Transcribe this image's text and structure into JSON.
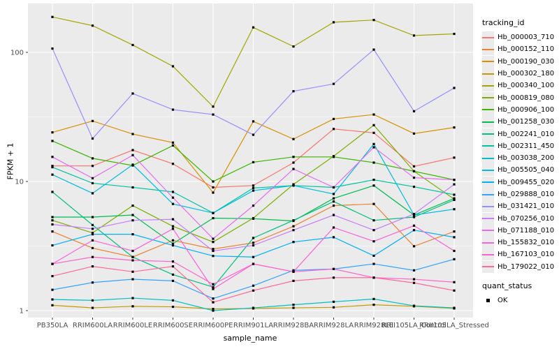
{
  "figure": {
    "background": "#FFFFFF",
    "panel_background": "#EBEBEB",
    "grid_color": "#FFFFFF",
    "tick_label_color": "#4D4D4D",
    "axis_title_color": "#000000",
    "point_color": "#000000"
  },
  "chart_data": {
    "type": "line",
    "title": "",
    "xlabel": "sample_name",
    "ylabel": "FPKM + 1",
    "y_scale": "log10",
    "y_ticks": [
      1,
      10,
      100
    ],
    "y_minor_ticks": [
      3.162,
      31.623
    ],
    "ylim": [
      0.9,
      230
    ],
    "grid": true,
    "legend_position": "right",
    "point_marker": "black-square",
    "categories": [
      "PB350LA",
      "RRIM600LA",
      "RRIM600LE",
      "RRIM600SE",
      "RRIM600PE",
      "RRIM901LA",
      "RRIM928BA",
      "RRIM928LA",
      "RRIM928LE",
      "RRII105LA_Control",
      "RRII105LA_Stressed"
    ],
    "series": [
      {
        "name": "Hb_000003_710",
        "color": "#F8766D",
        "values": [
          13.2,
          13.2,
          17.5,
          13.7,
          9.0,
          9.3,
          14.0,
          25.5,
          23.8,
          13.1,
          15.3
        ]
      },
      {
        "name": "Hb_000152_110",
        "color": "#EA8331",
        "values": [
          4.1,
          3.05,
          2.6,
          3.5,
          3.0,
          3.35,
          4.5,
          6.5,
          6.7,
          3.15,
          4.1
        ]
      },
      {
        "name": "Hb_000190_030",
        "color": "#D89000",
        "values": [
          24,
          29.4,
          23.3,
          20,
          8.2,
          29.2,
          21.3,
          30.5,
          33,
          23.5,
          26.2
        ]
      },
      {
        "name": "Hb_000302_180",
        "color": "#C49A00",
        "values": [
          1.1,
          1.05,
          1.08,
          1.07,
          1.03,
          1.04,
          1.05,
          1.06,
          1.11,
          1.08,
          1.04
        ]
      },
      {
        "name": "Hb_000340_100",
        "color": "#A3A500",
        "values": [
          188,
          161,
          114,
          78,
          38,
          156,
          111,
          171,
          178,
          135,
          139
        ]
      },
      {
        "name": "Hb_000819_080",
        "color": "#7CAE00",
        "values": [
          5.0,
          4.0,
          6.5,
          4.5,
          3.4,
          5.2,
          9.5,
          15.7,
          27.3,
          12.0,
          7.3
        ]
      },
      {
        "name": "Hb_000906_100",
        "color": "#39B600",
        "values": [
          20.6,
          15.1,
          13.3,
          19.0,
          10.0,
          14.1,
          15.5,
          15.5,
          14.0,
          12.0,
          10.3
        ]
      },
      {
        "name": "Hb_001258_030",
        "color": "#00BB4E",
        "values": [
          5.3,
          5.3,
          5.5,
          3.3,
          5.2,
          5.15,
          4.95,
          7.4,
          9.3,
          5.5,
          7.4
        ]
      },
      {
        "name": "Hb_002241_010",
        "color": "#00BF7D",
        "values": [
          8.3,
          4.6,
          2.6,
          1.9,
          1.52,
          3.65,
          5.0,
          7.0,
          5.0,
          5.3,
          7.2
        ]
      },
      {
        "name": "Hb_002311_450",
        "color": "#00C1A3",
        "values": [
          12.9,
          9.7,
          9.0,
          8.3,
          5.7,
          8.9,
          9.3,
          9.0,
          10.3,
          9.1,
          7.9
        ]
      },
      {
        "name": "Hb_003038_200",
        "color": "#00BFC4",
        "values": [
          1.22,
          1.2,
          1.25,
          1.2,
          1.0,
          1.05,
          1.11,
          1.17,
          1.23,
          1.09,
          1.05
        ]
      },
      {
        "name": "Hb_005505_040",
        "color": "#00BAE0",
        "values": [
          11.3,
          8.1,
          13.5,
          6.7,
          5.7,
          8.5,
          9.3,
          8.0,
          19.5,
          5.5,
          6.1
        ]
      },
      {
        "name": "Hb_009455_020",
        "color": "#00B0F6",
        "values": [
          3.2,
          3.9,
          3.9,
          3.2,
          2.65,
          2.6,
          3.4,
          3.7,
          2.66,
          4.2,
          3.7
        ]
      },
      {
        "name": "Hb_029888_010",
        "color": "#35A2FF",
        "values": [
          1.45,
          1.65,
          1.75,
          1.7,
          1.24,
          1.56,
          2.05,
          2.1,
          2.3,
          2.05,
          2.5
        ]
      },
      {
        "name": "Hb_031421_010",
        "color": "#9590FF",
        "values": [
          107,
          21.5,
          48,
          36,
          33,
          23,
          50,
          57,
          105,
          35,
          53
        ]
      },
      {
        "name": "Hb_070256_010",
        "color": "#C77CFF",
        "values": [
          4.65,
          4.3,
          5.0,
          5.1,
          2.9,
          3.2,
          4.2,
          5.5,
          4.2,
          5.6,
          9.5
        ]
      },
      {
        "name": "Hb_071188_010",
        "color": "#E76BF3",
        "values": [
          15.5,
          10.6,
          16.0,
          7.5,
          3.6,
          6.5,
          12.5,
          9.0,
          18.4,
          10.7,
          10.3
        ]
      },
      {
        "name": "Hb_155832_010",
        "color": "#FA62DB",
        "values": [
          2.3,
          3.5,
          2.9,
          4.3,
          1.47,
          2.3,
          2.0,
          4.4,
          3.44,
          4.55,
          2.9
        ]
      },
      {
        "name": "Hb_167103_010",
        "color": "#FF61CC",
        "values": [
          2.3,
          2.6,
          2.45,
          2.4,
          1.6,
          2.3,
          2.0,
          2.1,
          1.8,
          1.75,
          1.66
        ]
      },
      {
        "name": "Hb_179022_010",
        "color": "#FF6A98",
        "values": [
          1.85,
          2.2,
          2.0,
          2.2,
          1.16,
          1.43,
          1.7,
          1.8,
          1.8,
          1.64,
          1.43
        ]
      }
    ],
    "legend": {
      "tracking_id_title": "tracking_id",
      "quant_status_title": "quant_status",
      "quant_status_items": [
        {
          "label": "OK",
          "marker": "square",
          "color": "#000000"
        }
      ]
    }
  }
}
